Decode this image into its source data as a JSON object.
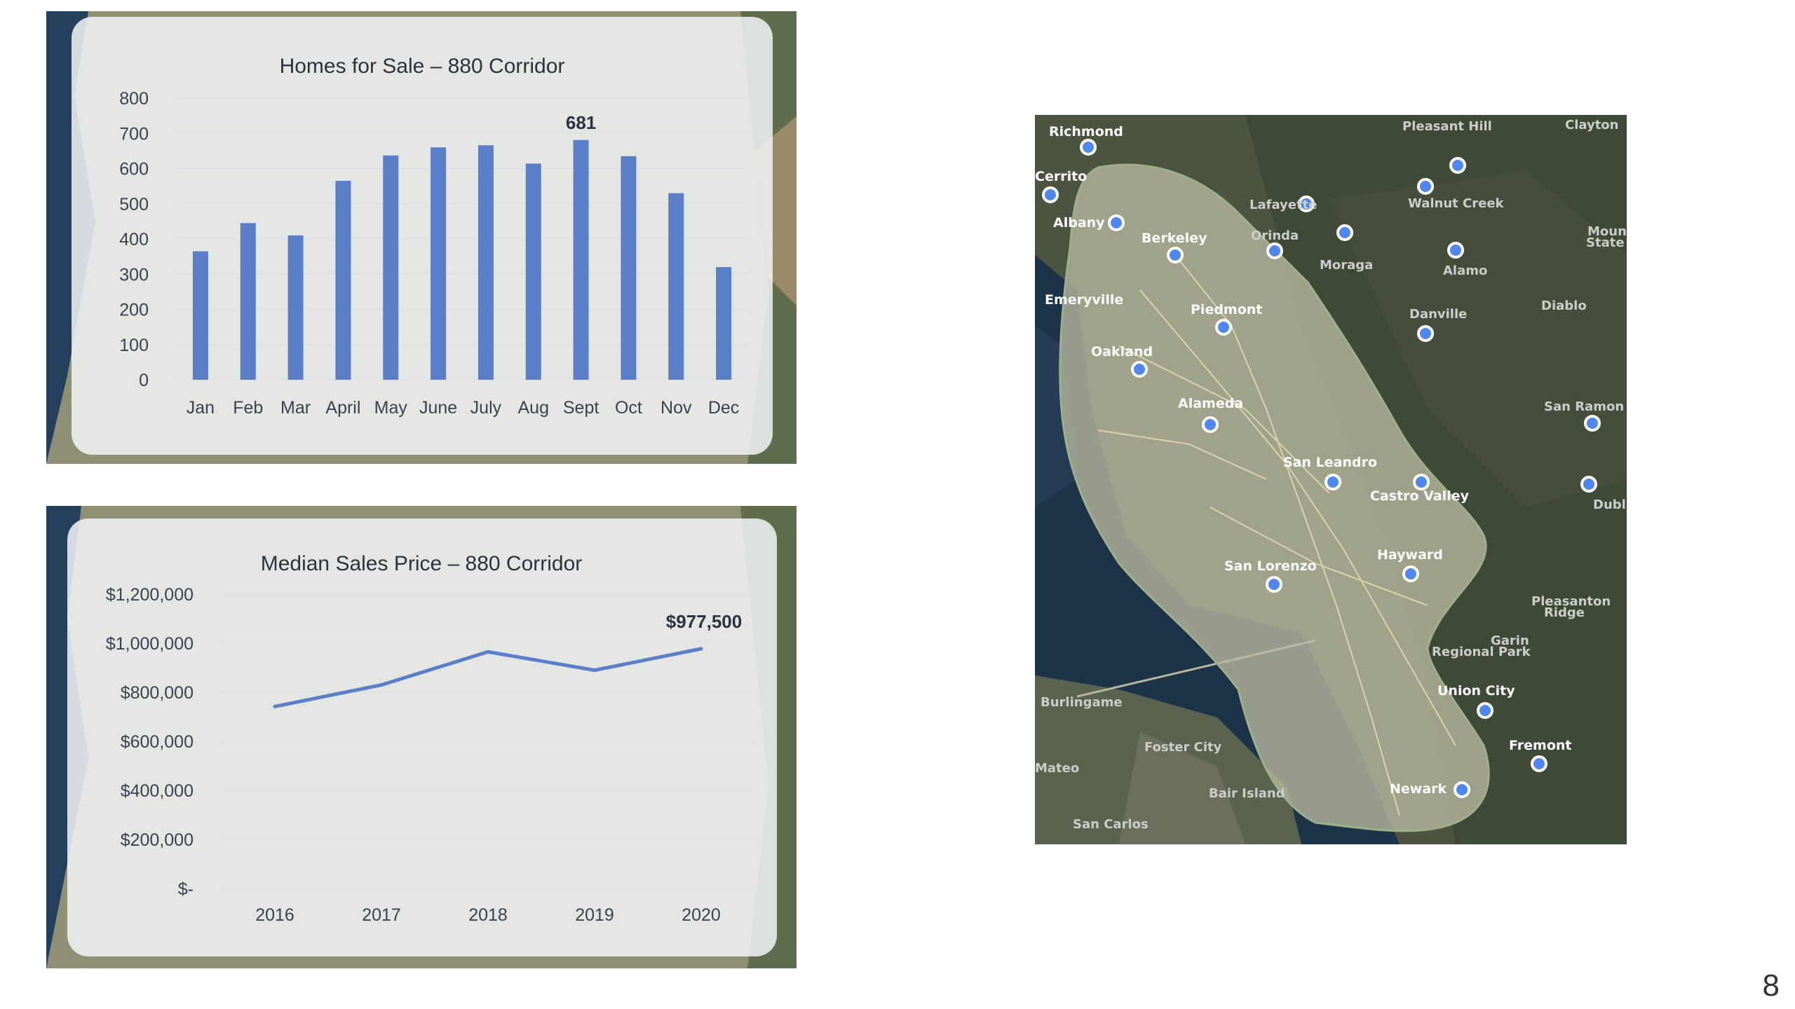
{
  "page_number": "8",
  "colors": {
    "bar": "#5b7ec9",
    "line": "#5b7ec9",
    "pin": "#4f86f0"
  },
  "chart_data": [
    {
      "type": "bar",
      "title": "Homes for Sale – 880 Corridor",
      "categories": [
        "Jan",
        "Feb",
        "Mar",
        "April",
        "May",
        "June",
        "July",
        "Aug",
        "Sept",
        "Oct",
        "Nov",
        "Dec"
      ],
      "values": [
        365,
        445,
        410,
        565,
        637,
        660,
        666,
        614,
        681,
        635,
        530,
        320
      ],
      "ylim": [
        0,
        800
      ],
      "yticks": [
        "0",
        "100",
        "200",
        "300",
        "400",
        "500",
        "600",
        "700",
        "800"
      ],
      "data_label": {
        "category": "Sept",
        "text": "681"
      },
      "grid": true,
      "xlabel": "",
      "ylabel": ""
    },
    {
      "type": "line",
      "title": "Median Sales Price – 880 Corridor",
      "x": [
        "2016",
        "2017",
        "2018",
        "2019",
        "2020"
      ],
      "values": [
        742000,
        830000,
        965000,
        890000,
        977500
      ],
      "ylim": [
        0,
        1200000
      ],
      "yticks": [
        "$-",
        "$200,000",
        "$400,000",
        "$600,000",
        "$800,000",
        "$1,000,000",
        "$1,200,000"
      ],
      "data_label": {
        "x": "2020",
        "text": "$977,500"
      },
      "grid": true,
      "xlabel": "",
      "ylabel": ""
    }
  ],
  "map": {
    "labels": {
      "richmond": "Richmond",
      "cerrito": "Cerrito",
      "albany": "Albany",
      "berkeley": "Berkeley",
      "emeryville": "Emeryville",
      "piedmont": "Piedmont",
      "oakland": "Oakland",
      "alameda": "Alameda",
      "lafayette": "Lafayette",
      "orinda": "Orinda",
      "moraga": "Moraga",
      "walnut_creek": "Walnut Creek",
      "pleasant_hill": "Pleasant Hill",
      "clayton": "Clayton",
      "alamo": "Alamo",
      "danville": "Danville",
      "diablo": "Diablo",
      "san_ramon": "San Ramon",
      "dubl": "Dubl",
      "san_leandro": "San Leandro",
      "castro_valley": "Castro Valley",
      "hayward": "Hayward",
      "san_lorenzo": "San Lorenzo",
      "union_city": "Union City",
      "fremont": "Fremont",
      "newark": "Newark",
      "burlingame": "Burlingame",
      "foster_city": "Foster City",
      "mateo": "Mateo",
      "san_carlos": "San Carlos",
      "bair_island": "Bair Island",
      "garin": "Garin",
      "regional_park": "Regional Park",
      "pleasanton": "Pleasanton",
      "ridge": "Ridge",
      "mount": "Mount",
      "state": "State P"
    }
  }
}
